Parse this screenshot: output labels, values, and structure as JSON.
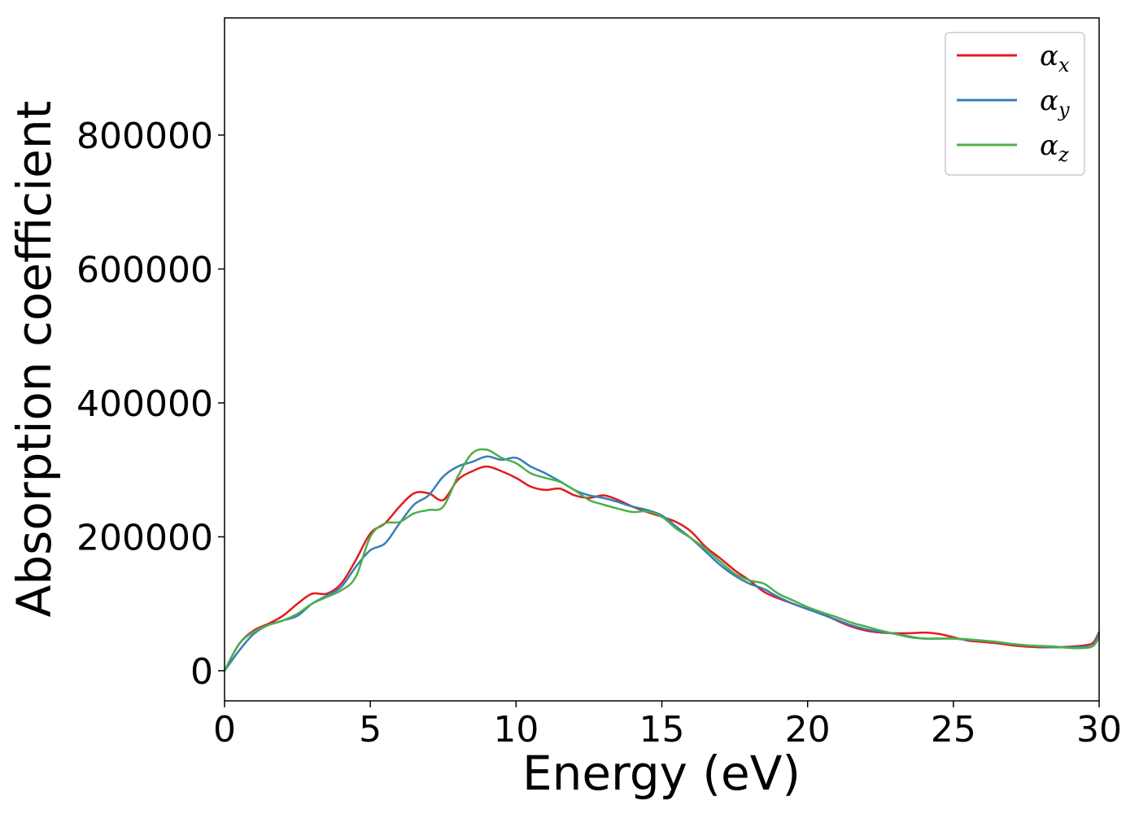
{
  "chart_data": {
    "type": "line",
    "title": "",
    "xlabel": "Energy (eV)",
    "ylabel": "Absorption coefficient",
    "xlim": [
      0,
      30
    ],
    "ylim": [
      -45000,
      975000
    ],
    "xticks": [
      0,
      5,
      10,
      15,
      20,
      25,
      30
    ],
    "xtick_labels": [
      "0",
      "5",
      "10",
      "15",
      "20",
      "25",
      "30"
    ],
    "yticks": [
      0,
      200000,
      400000,
      600000,
      800000
    ],
    "ytick_labels": [
      "0",
      "200000",
      "400000",
      "600000",
      "800000"
    ],
    "grid": false,
    "legend_position": "top-right",
    "x": [
      0,
      0.5,
      1,
      1.5,
      2,
      2.5,
      3,
      3.5,
      4,
      4.5,
      5,
      5.5,
      6,
      6.5,
      7,
      7.5,
      8,
      8.5,
      9,
      9.5,
      10,
      10.5,
      11,
      11.5,
      12,
      12.5,
      13,
      13.5,
      14,
      14.5,
      15,
      15.5,
      16,
      16.5,
      17,
      17.5,
      18,
      18.5,
      19,
      19.5,
      20,
      20.5,
      21,
      21.5,
      22,
      22.5,
      23,
      23.5,
      24,
      24.5,
      25,
      25.5,
      26,
      26.5,
      27,
      27.5,
      28,
      28.5,
      29,
      29.5,
      29.8,
      30
    ],
    "series": [
      {
        "name": "αx",
        "legend_symbol": "α",
        "legend_sub": "x",
        "color": "#e41a1c",
        "values": [
          0,
          40000,
          60000,
          70000,
          82000,
          100000,
          115000,
          115000,
          130000,
          165000,
          205000,
          220000,
          245000,
          265000,
          265000,
          255000,
          285000,
          298000,
          305000,
          298000,
          288000,
          275000,
          270000,
          272000,
          262000,
          258000,
          262000,
          255000,
          245000,
          237000,
          230000,
          222000,
          208000,
          185000,
          168000,
          150000,
          135000,
          118000,
          108000,
          100000,
          92000,
          85000,
          75000,
          66000,
          60000,
          57000,
          56000,
          56000,
          57000,
          55000,
          50000,
          45000,
          43000,
          41000,
          38000,
          36000,
          35000,
          35000,
          36000,
          38000,
          42000,
          58000
        ]
      },
      {
        "name": "αy",
        "legend_symbol": "α",
        "legend_sub": "y",
        "color": "#377eb8",
        "values": [
          0,
          30000,
          55000,
          68000,
          75000,
          82000,
          100000,
          112000,
          125000,
          155000,
          180000,
          190000,
          220000,
          248000,
          262000,
          290000,
          305000,
          312000,
          320000,
          315000,
          318000,
          305000,
          295000,
          283000,
          270000,
          262000,
          258000,
          252000,
          245000,
          240000,
          232000,
          215000,
          198000,
          178000,
          158000,
          142000,
          130000,
          122000,
          110000,
          100000,
          92000,
          84000,
          76000,
          68000,
          62000,
          58000,
          55000,
          51000,
          48000,
          48000,
          48000,
          46000,
          45000,
          43000,
          40000,
          38000,
          36000,
          35000,
          35000,
          36000,
          38000,
          58000
        ]
      },
      {
        "name": "αz",
        "legend_symbol": "α",
        "legend_sub": "z",
        "color": "#4daf4a",
        "values": [
          0,
          40000,
          58000,
          68000,
          75000,
          85000,
          100000,
          110000,
          120000,
          140000,
          200000,
          220000,
          222000,
          235000,
          240000,
          245000,
          290000,
          325000,
          330000,
          318000,
          310000,
          295000,
          288000,
          282000,
          270000,
          255000,
          248000,
          242000,
          237000,
          238000,
          230000,
          212000,
          198000,
          182000,
          163000,
          145000,
          135000,
          130000,
          115000,
          105000,
          95000,
          87000,
          80000,
          72000,
          66000,
          60000,
          55000,
          50000,
          48000,
          48000,
          48000,
          47000,
          45000,
          43000,
          40000,
          38000,
          37000,
          36000,
          34000,
          34000,
          37000,
          50000
        ]
      }
    ]
  }
}
